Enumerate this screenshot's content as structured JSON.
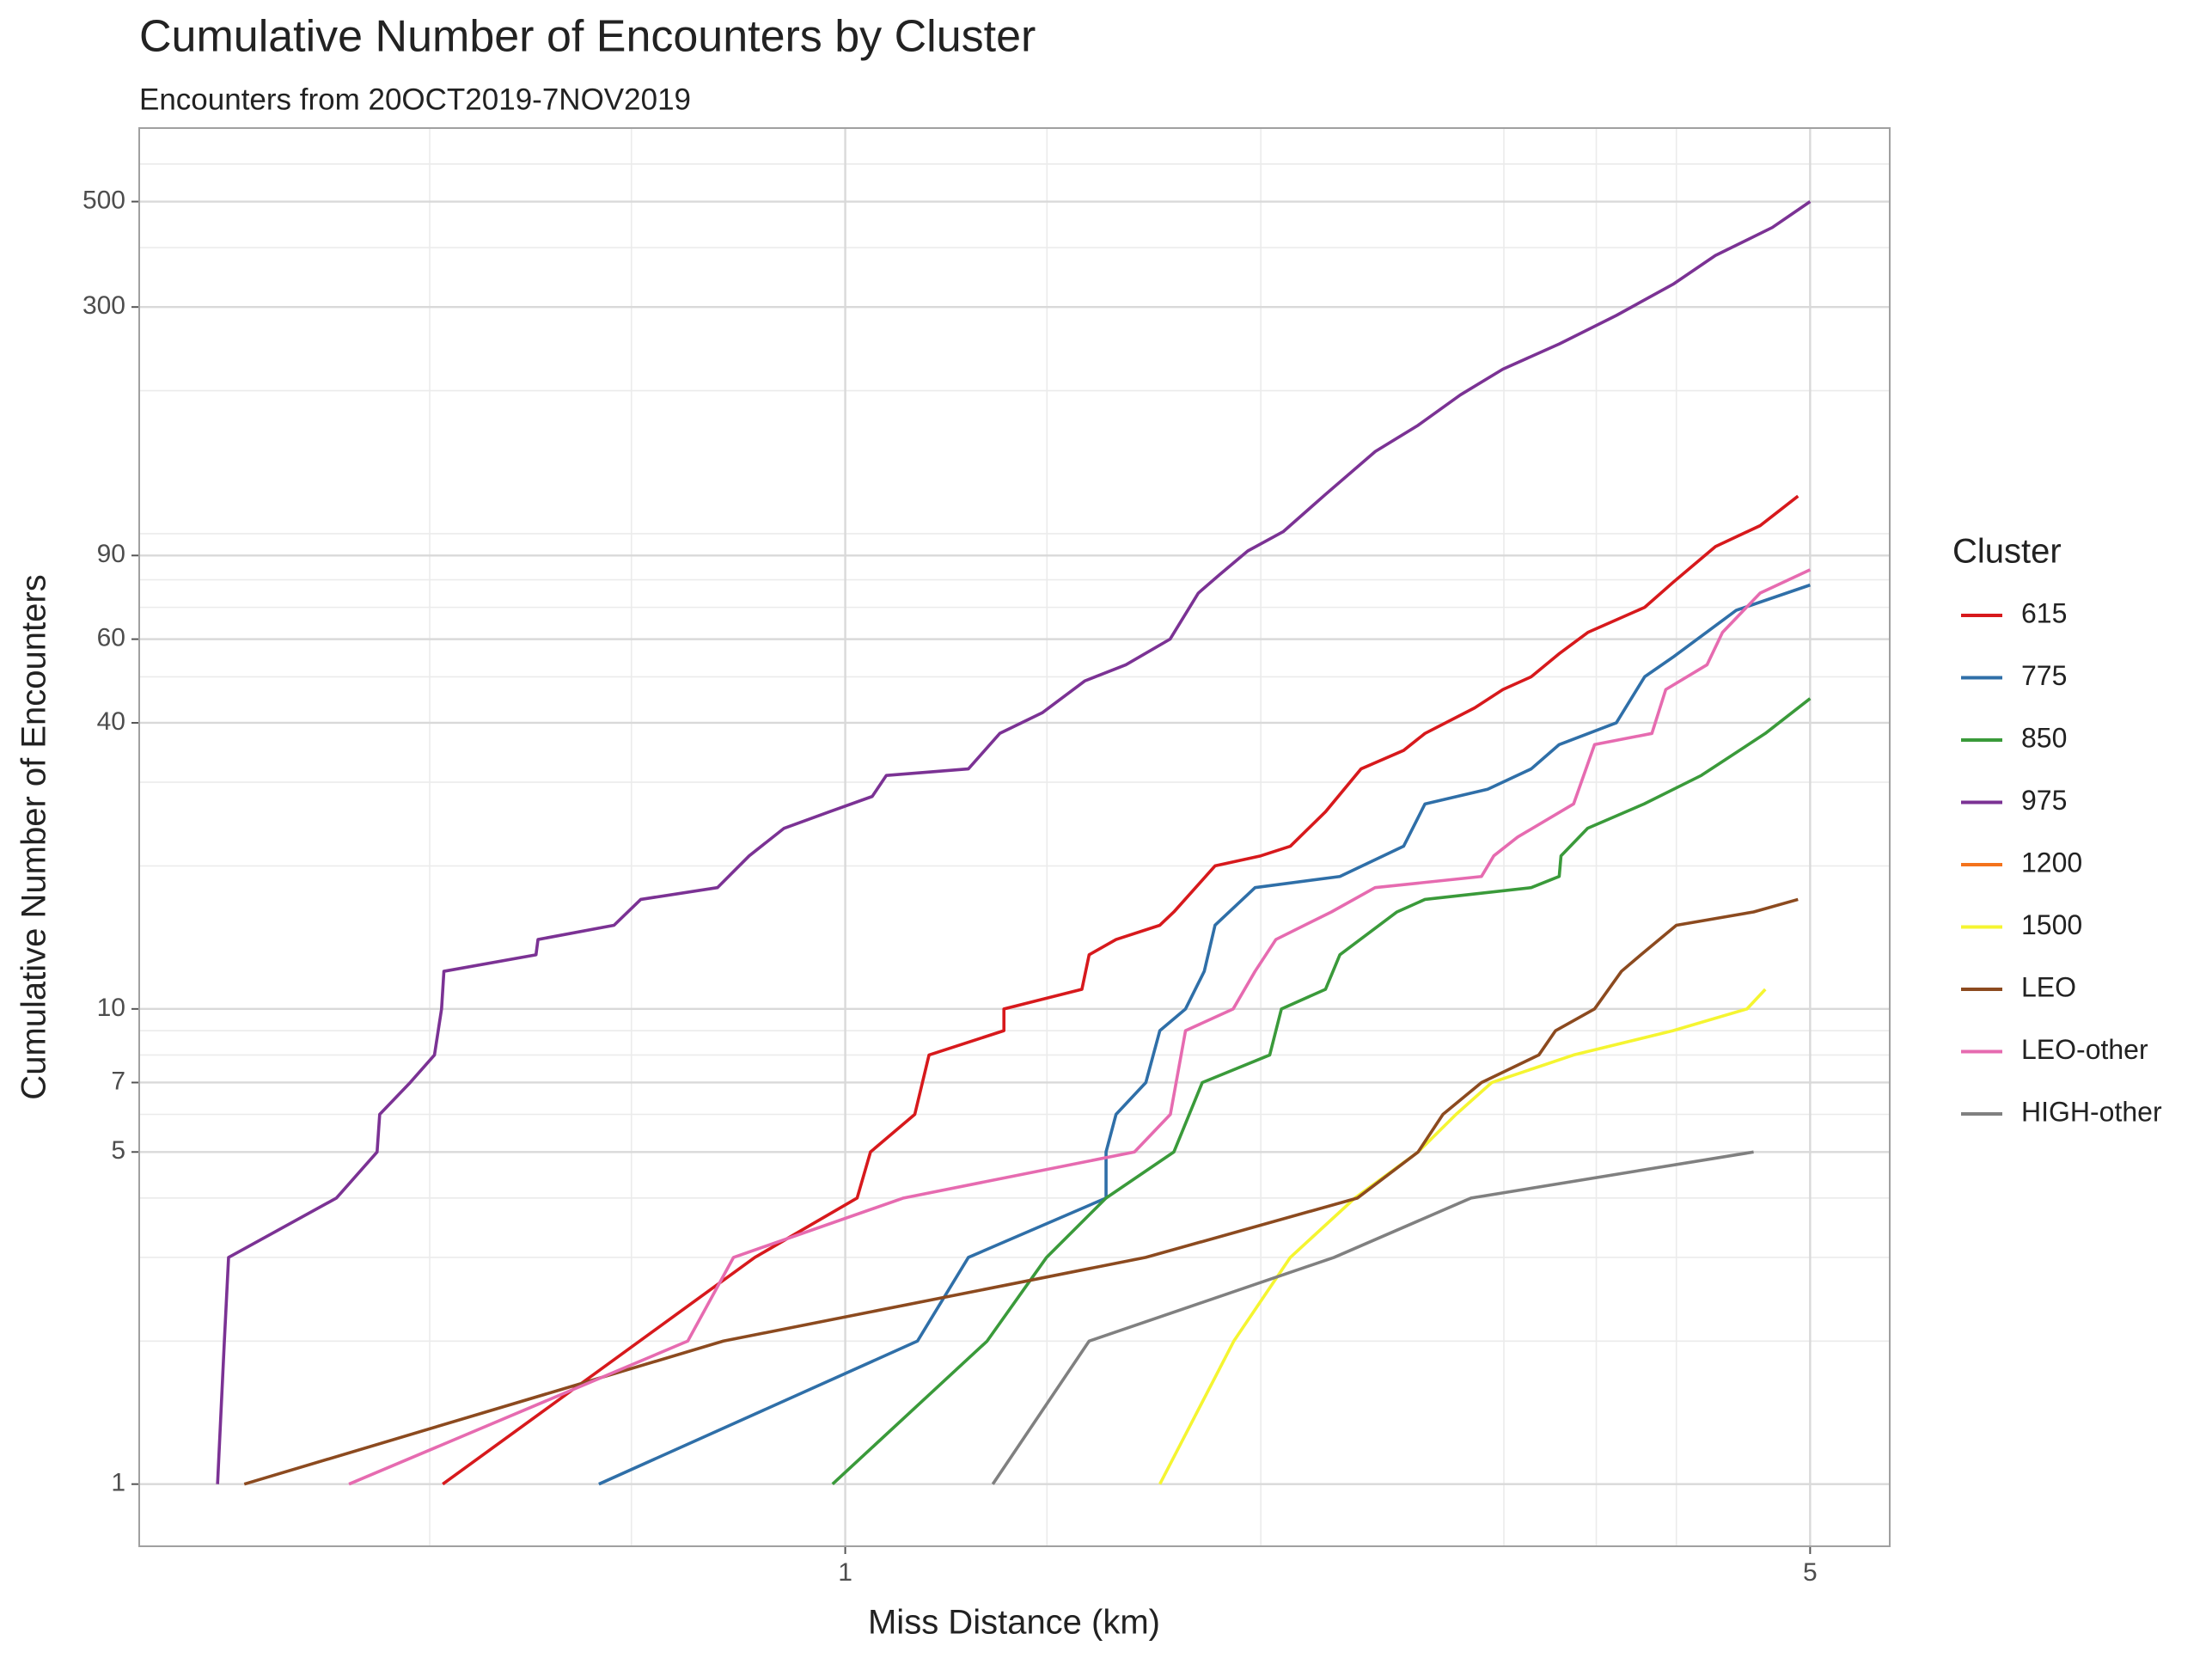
{
  "chart_data": {
    "type": "line",
    "title": "Cumulative Number of Encounters by Cluster",
    "subtitle": "Encounters from 20OCT2019-7NOV2019",
    "x_label": "Miss Distance (km)",
    "y_label": "Cumulative Number of Encounters",
    "legend_title": "Cluster",
    "legend": "right",
    "log_x": true,
    "log_y": true,
    "grid": true,
    "xlim": [
      0.308,
      5.71
    ],
    "ylim": [
      0.74,
      714
    ],
    "xticks": [
      1,
      5
    ],
    "yticks": [
      1,
      5,
      7,
      10,
      40,
      60,
      90,
      300,
      500
    ],
    "x_minor_grid": [
      0.5,
      0.7,
      1.4,
      2,
      3,
      3.5,
      4
    ],
    "y_minor_grid": [
      2,
      3,
      4,
      6,
      8,
      9,
      20,
      30,
      50,
      70,
      80,
      100,
      200,
      400,
      600
    ],
    "series": [
      {
        "name": "615",
        "color": "#d7191c",
        "x": [
          0.511,
          0.86,
          1.02,
          1.043,
          1.123,
          1.15,
          1.303,
          1.303,
          1.484,
          1.502,
          1.571,
          1.69,
          1.73,
          1.853,
          2.0,
          2.101,
          2.228,
          2.364,
          2.538,
          2.63,
          2.857,
          2.995,
          3.14,
          3.292,
          3.451,
          3.794,
          3.978,
          4.27,
          4.6,
          4.9
        ],
        "values": [
          1,
          3,
          4,
          5,
          6,
          8,
          9,
          10,
          11,
          13,
          14,
          15,
          16,
          20,
          21,
          22,
          26,
          32,
          35,
          38,
          43,
          47,
          50,
          56,
          62,
          70,
          79,
          94,
          104,
          120
        ]
      },
      {
        "name": "775",
        "color": "#2f6fa8",
        "x": [
          0.663,
          1.128,
          1.228,
          1.545,
          1.545,
          1.571,
          1.651,
          1.69,
          1.764,
          1.82,
          1.853,
          1.981,
          2.282,
          2.538,
          2.63,
          2.92,
          3.14,
          3.29,
          3.619,
          3.794,
          3.978,
          4.42,
          5.0
        ],
        "values": [
          1,
          2,
          3,
          4,
          5,
          6,
          7,
          9,
          10,
          12,
          15,
          18,
          19,
          22,
          27,
          29,
          32,
          36,
          40,
          50,
          55,
          69,
          78
        ]
      },
      {
        "name": "850",
        "color": "#3a9a3a",
        "x": [
          0.979,
          1.267,
          1.399,
          1.545,
          1.73,
          1.814,
          2.03,
          2.07,
          2.228,
          2.282,
          2.51,
          2.63,
          3.14,
          3.29,
          3.3,
          3.45,
          3.79,
          4.17,
          4.64,
          5.0
        ],
        "values": [
          1,
          2,
          3,
          4,
          5,
          7,
          8,
          10,
          11,
          13,
          16,
          17,
          18,
          19,
          21,
          24,
          27,
          31,
          38,
          45
        ]
      },
      {
        "name": "975",
        "color": "#7b3294",
        "x": [
          0.351,
          0.355,
          0.3575,
          0.428,
          0.458,
          0.46,
          0.484,
          0.504,
          0.51,
          0.512,
          0.597,
          0.599,
          0.68,
          0.711,
          0.808,
          0.852,
          0.903,
          0.974,
          1.046,
          1.071,
          1.228,
          1.294,
          1.389,
          1.491,
          1.597,
          1.719,
          1.802,
          1.867,
          1.957,
          2.076,
          2.228,
          2.421,
          2.599,
          2.79,
          2.995,
          3.292,
          3.619,
          3.978,
          4.269,
          4.694,
          5.0
        ],
        "values": [
          1,
          2,
          3,
          4,
          5,
          6,
          7,
          8,
          10,
          12,
          13,
          14,
          15,
          17,
          18,
          21,
          24,
          26,
          28,
          31,
          32,
          38,
          42,
          49,
          53,
          60,
          75,
          82,
          92,
          101,
          121,
          149,
          169,
          196,
          222,
          251,
          288,
          335,
          385,
          441,
          500
        ]
      },
      {
        "name": "1200",
        "color": "#f4731c",
        "x": [],
        "values": []
      },
      {
        "name": "1500",
        "color": "#f5f531",
        "x": [
          1.69,
          1.912,
          2.101,
          2.34,
          2.6,
          2.77,
          2.94,
          3.37,
          3.978,
          4.5,
          4.64
        ],
        "values": [
          1,
          2,
          3,
          4,
          5,
          6,
          7,
          8,
          9,
          10,
          11
        ]
      },
      {
        "name": "LEO",
        "color": "#8c4a1f",
        "x": [
          0.367,
          0.816,
          1.651,
          2.35,
          2.6,
          2.71,
          2.89,
          3.18,
          3.27,
          3.49,
          3.65,
          3.77,
          4.0,
          4.55,
          4.9
        ],
        "values": [
          1,
          2,
          3,
          4,
          5,
          6,
          7,
          8,
          9,
          10,
          12,
          13,
          15,
          16,
          17
        ]
      },
      {
        "name": "LEO-other",
        "color": "#e66bb0",
        "x": [
          0.437,
          0.769,
          0.83,
          1.102,
          1.62,
          1.72,
          1.764,
          1.91,
          1.981,
          2.051,
          2.25,
          2.42,
          2.89,
          2.95,
          3.07,
          3.37,
          3.49,
          3.84,
          3.93,
          4.21,
          4.32,
          4.6,
          5.0
        ],
        "values": [
          1,
          2,
          3,
          4,
          5,
          6,
          9,
          10,
          12,
          14,
          16,
          18,
          19,
          21,
          23,
          27,
          36,
          38,
          47,
          53,
          62,
          75,
          84
        ]
      },
      {
        "name": "HIGH-other",
        "color": "#808080",
        "x": [
          1.279,
          1.502,
          2.26,
          2.84,
          4.55
        ],
        "values": [
          1,
          2,
          3,
          4,
          5
        ]
      }
    ]
  }
}
